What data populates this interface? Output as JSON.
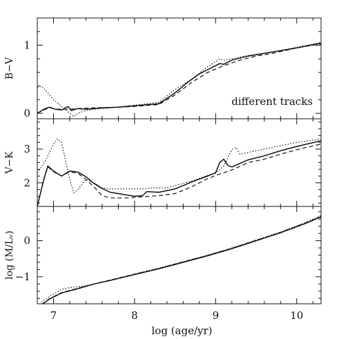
{
  "chart_data": [
    {
      "type": "line",
      "ylabel": "B−V",
      "annotation": "different tracks",
      "xlim": [
        6.8,
        10.3
      ],
      "ylim": [
        -0.08,
        1.4
      ],
      "yticks": [
        {
          "v": 0,
          "label": "0"
        },
        {
          "v": 1,
          "label": "1"
        }
      ],
      "series": [
        {
          "style": "solid",
          "points": [
            [
              6.8,
              0.0
            ],
            [
              6.88,
              0.06
            ],
            [
              6.95,
              0.09
            ],
            [
              7.02,
              0.06
            ],
            [
              7.1,
              0.05
            ],
            [
              7.18,
              0.1
            ],
            [
              7.22,
              0.04
            ],
            [
              7.3,
              0.07
            ],
            [
              7.4,
              0.06
            ],
            [
              7.5,
              0.07
            ],
            [
              7.6,
              0.08
            ],
            [
              7.8,
              0.09
            ],
            [
              8.0,
              0.11
            ],
            [
              8.3,
              0.14
            ],
            [
              8.5,
              0.3
            ],
            [
              8.65,
              0.45
            ],
            [
              8.8,
              0.58
            ],
            [
              8.9,
              0.64
            ],
            [
              9.0,
              0.7
            ],
            [
              9.05,
              0.73
            ],
            [
              9.1,
              0.72
            ],
            [
              9.2,
              0.78
            ],
            [
              9.4,
              0.84
            ],
            [
              9.6,
              0.88
            ],
            [
              9.8,
              0.92
            ],
            [
              10.0,
              0.96
            ],
            [
              10.3,
              1.03
            ]
          ]
        },
        {
          "style": "dashed",
          "points": [
            [
              6.8,
              0.0
            ],
            [
              6.88,
              0.05
            ],
            [
              6.95,
              0.08
            ],
            [
              7.05,
              0.06
            ],
            [
              7.2,
              0.06
            ],
            [
              7.3,
              0.07
            ],
            [
              7.5,
              0.08
            ],
            [
              7.8,
              0.09
            ],
            [
              8.0,
              0.1
            ],
            [
              8.3,
              0.13
            ],
            [
              8.5,
              0.27
            ],
            [
              8.7,
              0.45
            ],
            [
              8.9,
              0.6
            ],
            [
              9.1,
              0.7
            ],
            [
              9.3,
              0.78
            ],
            [
              9.5,
              0.84
            ],
            [
              9.7,
              0.88
            ],
            [
              10.0,
              0.96
            ],
            [
              10.3,
              1.02
            ]
          ]
        },
        {
          "style": "dotted",
          "points": [
            [
              6.8,
              0.38
            ],
            [
              6.85,
              0.4
            ],
            [
              6.9,
              0.34
            ],
            [
              7.0,
              0.2
            ],
            [
              7.1,
              0.1
            ],
            [
              7.2,
              0.0
            ],
            [
              7.25,
              -0.05
            ],
            [
              7.3,
              0.0
            ],
            [
              7.4,
              0.04
            ],
            [
              7.5,
              0.06
            ],
            [
              7.7,
              0.08
            ],
            [
              8.0,
              0.12
            ],
            [
              8.3,
              0.16
            ],
            [
              8.5,
              0.35
            ],
            [
              8.7,
              0.5
            ],
            [
              8.9,
              0.68
            ],
            [
              9.0,
              0.76
            ],
            [
              9.05,
              0.8
            ],
            [
              9.1,
              0.78
            ],
            [
              9.2,
              0.8
            ],
            [
              9.4,
              0.85
            ],
            [
              9.6,
              0.88
            ],
            [
              9.8,
              0.92
            ],
            [
              10.0,
              0.97
            ],
            [
              10.3,
              1.04
            ]
          ]
        }
      ]
    },
    {
      "type": "line",
      "ylabel": "V−K",
      "xlim": [
        6.8,
        10.3
      ],
      "ylim": [
        1.3,
        3.9
      ],
      "yticks": [
        {
          "v": 2,
          "label": "2"
        },
        {
          "v": 3,
          "label": "3"
        }
      ],
      "series": [
        {
          "style": "solid",
          "points": [
            [
              6.8,
              1.3
            ],
            [
              6.88,
              2.1
            ],
            [
              6.93,
              2.5
            ],
            [
              7.0,
              2.35
            ],
            [
              7.1,
              2.2
            ],
            [
              7.2,
              2.35
            ],
            [
              7.3,
              2.32
            ],
            [
              7.4,
              2.18
            ],
            [
              7.5,
              1.98
            ],
            [
              7.6,
              1.83
            ],
            [
              7.7,
              1.72
            ],
            [
              7.85,
              1.66
            ],
            [
              8.0,
              1.6
            ],
            [
              8.1,
              1.62
            ],
            [
              8.15,
              1.74
            ],
            [
              8.3,
              1.72
            ],
            [
              8.5,
              1.82
            ],
            [
              8.7,
              2.02
            ],
            [
              8.9,
              2.2
            ],
            [
              9.0,
              2.3
            ],
            [
              9.05,
              2.6
            ],
            [
              9.1,
              2.7
            ],
            [
              9.15,
              2.52
            ],
            [
              9.2,
              2.47
            ],
            [
              9.4,
              2.68
            ],
            [
              9.6,
              2.8
            ],
            [
              9.8,
              2.95
            ],
            [
              10.0,
              3.08
            ],
            [
              10.3,
              3.25
            ]
          ]
        },
        {
          "style": "dashed",
          "points": [
            [
              6.8,
              1.3
            ],
            [
              6.88,
              2.08
            ],
            [
              6.93,
              2.48
            ],
            [
              7.0,
              2.33
            ],
            [
              7.1,
              2.2
            ],
            [
              7.2,
              2.33
            ],
            [
              7.3,
              2.28
            ],
            [
              7.4,
              2.1
            ],
            [
              7.5,
              1.88
            ],
            [
              7.6,
              1.62
            ],
            [
              7.7,
              1.55
            ],
            [
              7.9,
              1.55
            ],
            [
              8.0,
              1.57
            ],
            [
              8.3,
              1.62
            ],
            [
              8.5,
              1.68
            ],
            [
              8.7,
              1.88
            ],
            [
              8.9,
              2.12
            ],
            [
              9.0,
              2.22
            ],
            [
              9.2,
              2.38
            ],
            [
              9.4,
              2.6
            ],
            [
              9.6,
              2.7
            ],
            [
              9.8,
              2.85
            ],
            [
              10.0,
              2.98
            ],
            [
              10.3,
              3.15
            ]
          ]
        },
        {
          "style": "dotted",
          "points": [
            [
              6.8,
              2.3
            ],
            [
              6.9,
              2.65
            ],
            [
              7.0,
              3.15
            ],
            [
              7.05,
              3.3
            ],
            [
              7.1,
              3.2
            ],
            [
              7.2,
              2.1
            ],
            [
              7.25,
              1.7
            ],
            [
              7.3,
              1.8
            ],
            [
              7.4,
              2.1
            ],
            [
              7.5,
              2.0
            ],
            [
              7.6,
              1.85
            ],
            [
              7.7,
              1.82
            ],
            [
              8.0,
              1.82
            ],
            [
              8.1,
              1.82
            ],
            [
              8.2,
              1.85
            ],
            [
              8.4,
              1.85
            ],
            [
              8.7,
              2.05
            ],
            [
              8.9,
              2.22
            ],
            [
              9.0,
              2.28
            ],
            [
              9.1,
              2.5
            ],
            [
              9.2,
              2.98
            ],
            [
              9.25,
              3.05
            ],
            [
              9.3,
              2.85
            ],
            [
              9.5,
              2.95
            ],
            [
              9.8,
              3.1
            ],
            [
              10.0,
              3.2
            ],
            [
              10.3,
              3.3
            ]
          ]
        }
      ]
    },
    {
      "type": "line",
      "ylabel": "log (M/Lᵥ)",
      "xlabel": "log (age/yr)",
      "xlim": [
        6.8,
        10.3
      ],
      "ylim": [
        -1.75,
        0.95
      ],
      "yticks": [
        {
          "v": -1,
          "label": "−1"
        },
        {
          "v": 0,
          "label": "0"
        }
      ],
      "xticks": [
        {
          "v": 7,
          "label": "7"
        },
        {
          "v": 8,
          "label": "8"
        },
        {
          "v": 9,
          "label": "9"
        },
        {
          "v": 10,
          "label": "10"
        }
      ],
      "series": [
        {
          "style": "solid",
          "points": [
            [
              6.85,
              -1.78
            ],
            [
              6.95,
              -1.62
            ],
            [
              7.1,
              -1.45
            ],
            [
              7.3,
              -1.33
            ],
            [
              7.5,
              -1.2
            ],
            [
              7.7,
              -1.1
            ],
            [
              8.0,
              -0.94
            ],
            [
              8.3,
              -0.78
            ],
            [
              8.6,
              -0.6
            ],
            [
              8.9,
              -0.42
            ],
            [
              9.2,
              -0.22
            ],
            [
              9.5,
              0.0
            ],
            [
              9.8,
              0.22
            ],
            [
              10.1,
              0.47
            ],
            [
              10.3,
              0.66
            ]
          ]
        },
        {
          "style": "dashed",
          "points": [
            [
              6.85,
              -1.77
            ],
            [
              6.95,
              -1.61
            ],
            [
              7.1,
              -1.44
            ],
            [
              7.3,
              -1.32
            ],
            [
              7.5,
              -1.2
            ],
            [
              7.7,
              -1.09
            ],
            [
              8.0,
              -0.93
            ],
            [
              8.3,
              -0.77
            ],
            [
              8.6,
              -0.59
            ],
            [
              8.9,
              -0.41
            ],
            [
              9.2,
              -0.21
            ],
            [
              9.5,
              0.01
            ],
            [
              9.8,
              0.23
            ],
            [
              10.1,
              0.48
            ],
            [
              10.3,
              0.67
            ]
          ]
        },
        {
          "style": "dotted",
          "points": [
            [
              6.85,
              -1.7
            ],
            [
              6.95,
              -1.55
            ],
            [
              7.1,
              -1.35
            ],
            [
              7.2,
              -1.3
            ],
            [
              7.4,
              -1.25
            ],
            [
              7.6,
              -1.15
            ],
            [
              7.8,
              -1.05
            ],
            [
              8.0,
              -0.92
            ],
            [
              8.3,
              -0.76
            ],
            [
              8.6,
              -0.58
            ],
            [
              8.9,
              -0.4
            ],
            [
              9.2,
              -0.2
            ],
            [
              9.5,
              0.02
            ],
            [
              9.8,
              0.24
            ],
            [
              10.1,
              0.5
            ],
            [
              10.3,
              0.7
            ]
          ]
        }
      ]
    }
  ]
}
